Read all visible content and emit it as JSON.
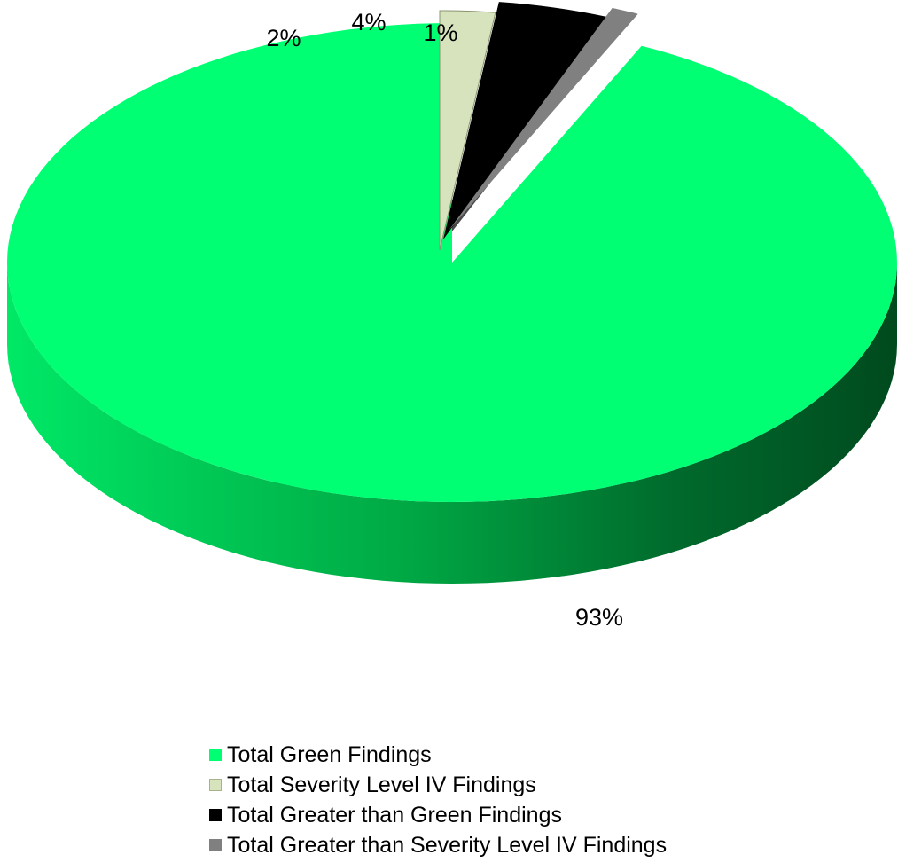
{
  "chart_data": {
    "type": "pie",
    "style": "3d-exploded",
    "categories": [
      "Total Green Findings",
      "Total Severity Level IV Findings",
      "Total Greater than Green Findings",
      "Total Greater than Severity Level IV Findings"
    ],
    "values": [
      93,
      2,
      4,
      1
    ],
    "value_unit": "%",
    "data_labels": [
      "93%",
      "2%",
      "4%",
      "1%"
    ],
    "colors": [
      "#00ff73",
      "#d6e3bc",
      "#000000",
      "#808080"
    ],
    "side_colors": [
      "#00a844",
      "#6b7560",
      "#000000",
      "#4a4a4a"
    ],
    "legend_position": "bottom",
    "title": ""
  }
}
